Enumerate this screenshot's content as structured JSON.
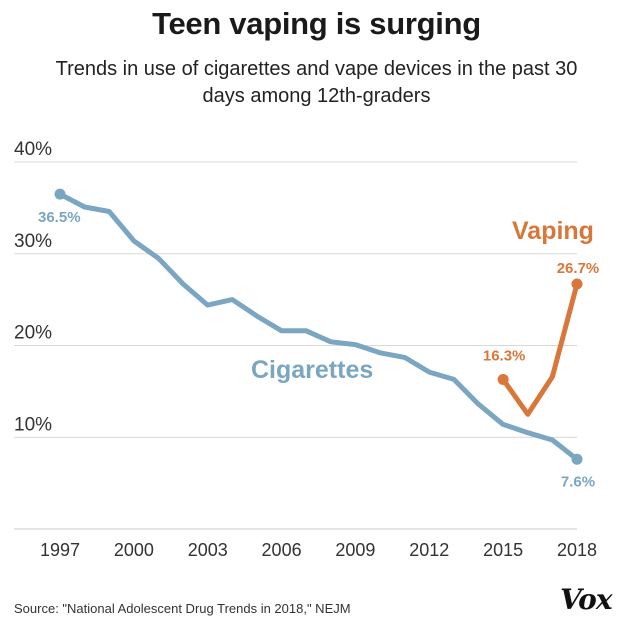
{
  "chart_data": {
    "type": "line",
    "title": "Teen vaping is surging",
    "subtitle": "Trends in use of cigarettes and vape devices in the past 30 days among 12th-graders",
    "xlabel": "",
    "ylabel": "",
    "xlim": [
      1997,
      2018
    ],
    "ylim": [
      0,
      40
    ],
    "x_ticks": [
      "1997",
      "2000",
      "2003",
      "2006",
      "2009",
      "2012",
      "2015",
      "2018"
    ],
    "y_ticks": [
      "10%",
      "20%",
      "30%",
      "40%"
    ],
    "series": [
      {
        "name": "Cigarettes",
        "color": "#7aa6c2",
        "x": [
          1997,
          1998,
          1999,
          2000,
          2001,
          2002,
          2003,
          2004,
          2005,
          2006,
          2007,
          2008,
          2009,
          2010,
          2011,
          2012,
          2013,
          2014,
          2015,
          2016,
          2017,
          2018
        ],
        "values": [
          36.5,
          35.1,
          34.6,
          31.4,
          29.5,
          26.7,
          24.4,
          25.0,
          23.2,
          21.6,
          21.6,
          20.4,
          20.1,
          19.2,
          18.7,
          17.1,
          16.3,
          13.6,
          11.4,
          10.5,
          9.7,
          7.6
        ],
        "start_label": "36.5%",
        "end_label": "7.6%"
      },
      {
        "name": "Vaping",
        "color": "#d9773a",
        "x": [
          2015,
          2016,
          2017,
          2018
        ],
        "values": [
          16.3,
          12.5,
          16.6,
          26.7
        ],
        "start_label": "16.3%",
        "end_label": "26.7%"
      }
    ],
    "grid": true
  },
  "source": "Source: \"National Adolescent Drug Trends in 2018,\" NEJM",
  "logo": "Vox"
}
